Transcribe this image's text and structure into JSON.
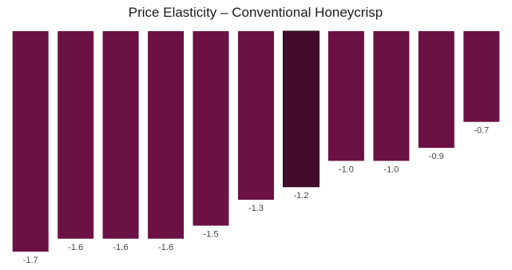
{
  "chart_data": {
    "type": "bar",
    "title": "Price Elasticity – Conventional Honeycrisp",
    "xlabel": "",
    "ylabel": "",
    "categories": [
      "",
      "",
      "",
      "",
      "",
      "",
      "",
      "",
      "",
      "",
      ""
    ],
    "values": [
      -1.7,
      -1.6,
      -1.6,
      -1.6,
      -1.5,
      -1.3,
      -1.2,
      -1.0,
      -1.0,
      -0.9,
      -0.7
    ],
    "data_labels": [
      "-1.7",
      "-1.6",
      "-1.6",
      "-1.6",
      "-1.5",
      "-1.3",
      "-1.2",
      "-1.0",
      "-1.0",
      "-0.9",
      "-0.7"
    ],
    "ylim": [
      -1.7,
      0
    ],
    "grid": false,
    "legend": "none",
    "highlight_index": 6,
    "colors": {
      "bar": "#6b1143",
      "highlight": "#430c2c"
    }
  }
}
